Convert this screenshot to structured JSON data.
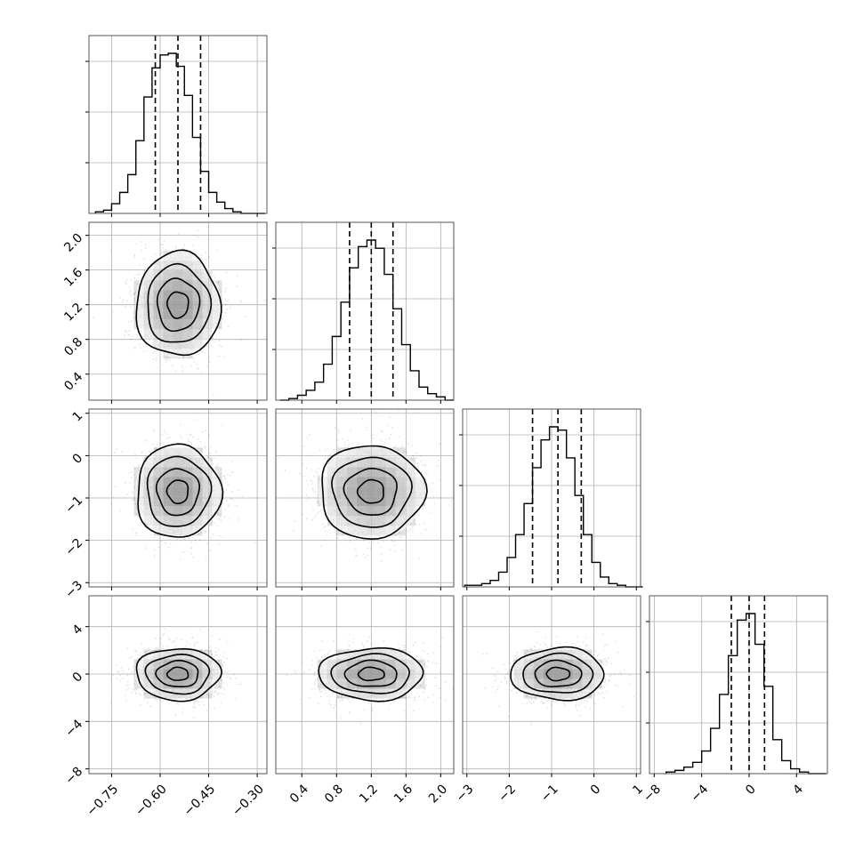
{
  "chart_data": {
    "type": "corner",
    "parameters": [
      {
        "range": [
          -0.82,
          -0.27
        ],
        "ticks": [
          -0.75,
          -0.6,
          -0.45,
          -0.3
        ],
        "tick_labels": [
          "−0.75",
          "−0.60",
          "−0.45",
          "−0.30"
        ],
        "quantiles": [
          -0.615,
          -0.545,
          -0.475
        ],
        "hist": {
          "edges_start": -0.8,
          "bin_width": 0.025,
          "counts": [
            1,
            2,
            6,
            13,
            24,
            45,
            72,
            90,
            98,
            99,
            91,
            73,
            47,
            26,
            13,
            7,
            3,
            1,
            0,
            0,
            0
          ]
        }
      },
      {
        "range": [
          0.1,
          2.15
        ],
        "ticks": [
          0.4,
          0.8,
          1.2,
          1.6,
          2.0
        ],
        "tick_labels": [
          "0.4",
          "0.8",
          "1.2",
          "1.6",
          "2.0"
        ],
        "quantiles": [
          0.95,
          1.2,
          1.45
        ],
        "hist": {
          "edges_start": 0.15,
          "bin_width": 0.1,
          "counts": [
            0,
            1,
            3,
            6,
            11,
            22,
            39,
            60,
            81,
            94,
            98,
            93,
            77,
            56,
            34,
            18,
            8,
            4,
            2,
            0
          ]
        }
      },
      {
        "range": [
          -3.1,
          1.1
        ],
        "ticks": [
          -3,
          -2,
          -1,
          0,
          1
        ],
        "tick_labels": [
          "−3",
          "−2",
          "−1",
          "0",
          "1"
        ],
        "quantiles": [
          -1.45,
          -0.85,
          -0.3
        ],
        "hist": {
          "edges_start": -3.05,
          "bin_width": 0.2,
          "counts": [
            1,
            1,
            2,
            4,
            9,
            18,
            32,
            51,
            73,
            90,
            98,
            96,
            79,
            56,
            32,
            15,
            6,
            2,
            1,
            0,
            0
          ]
        }
      },
      {
        "range": [
          -8.4,
          6.6
        ],
        "ticks": [
          -8,
          -4,
          0,
          4
        ],
        "tick_labels": [
          "−8",
          "−4",
          "0",
          "4"
        ],
        "quantiles": [
          -1.5,
          0.0,
          1.3
        ],
        "hist": {
          "edges_start": -7.0,
          "bin_width": 0.75,
          "counts": [
            1,
            2,
            4,
            7,
            14,
            28,
            49,
            73,
            95,
            99,
            80,
            54,
            21,
            8,
            3,
            1,
            0,
            0
          ]
        }
      }
    ],
    "pairs": [
      {
        "x": 0,
        "y": 1,
        "center": [
          -0.545,
          1.2
        ],
        "spread": [
          0.065,
          0.3
        ]
      },
      {
        "x": 0,
        "y": 2,
        "center": [
          -0.545,
          -0.85
        ],
        "spread": [
          0.065,
          0.55
        ]
      },
      {
        "x": 1,
        "y": 2,
        "center": [
          1.2,
          -0.85
        ],
        "spread": [
          0.3,
          0.55
        ]
      },
      {
        "x": 0,
        "y": 3,
        "center": [
          -0.545,
          0.0
        ],
        "spread": [
          0.065,
          1.1
        ]
      },
      {
        "x": 1,
        "y": 3,
        "center": [
          1.2,
          0.0
        ],
        "spread": [
          0.3,
          1.1
        ]
      },
      {
        "x": 2,
        "y": 3,
        "center": [
          -0.85,
          0.0
        ],
        "spread": [
          0.55,
          1.1
        ]
      }
    ],
    "contour_levels_sigma": [
      0.5,
      1.0,
      1.5,
      2.0
    ],
    "grid": true,
    "legend": "none",
    "colors": {
      "line": "#000000",
      "grid": "#b0b0b0",
      "density": "#000000"
    }
  }
}
